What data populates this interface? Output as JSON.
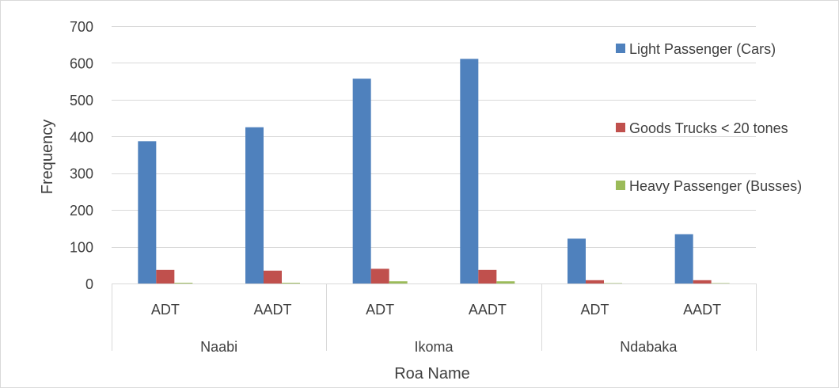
{
  "chart_data": {
    "type": "bar",
    "title": "",
    "xlabel": "Roa Name",
    "ylabel": "Frequency",
    "ylim": [
      0,
      700
    ],
    "yticks": [
      0,
      100,
      200,
      300,
      400,
      500,
      600,
      700
    ],
    "grid": true,
    "legend_position": "right",
    "groups": [
      "Naabi",
      "Ikoma",
      "Ndabaka"
    ],
    "categories": [
      "ADT",
      "AADT",
      "ADT",
      "AADT",
      "ADT",
      "AADT"
    ],
    "series": [
      {
        "name": "Light Passenger (Cars)",
        "color": "#4f81bd",
        "values": [
          387,
          425,
          557,
          611,
          122,
          134
        ]
      },
      {
        "name": "Goods Trucks < 20 tones",
        "color": "#c0504d",
        "values": [
          37,
          35,
          40,
          37,
          9,
          9
        ]
      },
      {
        "name": "Heavy Passenger (Busses)",
        "color": "#9bbb59",
        "values": [
          2,
          2,
          6,
          6,
          1,
          1
        ]
      }
    ]
  }
}
